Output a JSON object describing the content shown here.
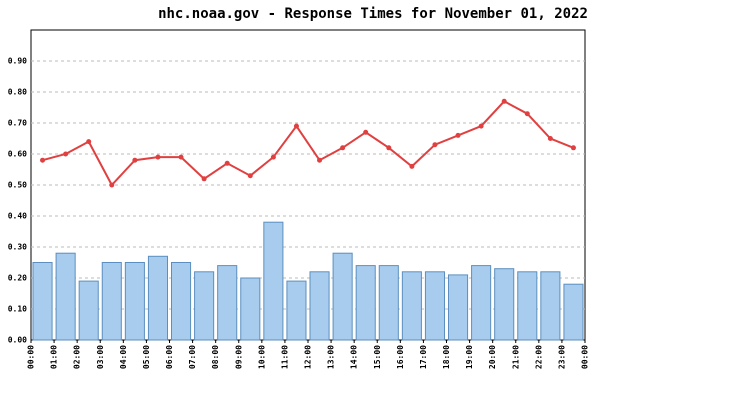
{
  "chart_data": {
    "type": "bar",
    "title": "nhc.noaa.gov - Response Times for November 01, 2022",
    "xticks": [
      "00:00",
      "01:00",
      "02:00",
      "03:00",
      "04:00",
      "05:00",
      "06:00",
      "07:00",
      "08:00",
      "09:00",
      "10:00",
      "11:00",
      "12:00",
      "13:00",
      "14:00",
      "15:00",
      "16:00",
      "17:00",
      "18:00",
      "19:00",
      "20:00",
      "21:00",
      "22:00",
      "23:00",
      "00:00"
    ],
    "series": [
      {
        "type": "bar",
        "color": "#a8ccee",
        "values": [
          0.25,
          0.28,
          0.19,
          0.25,
          0.25,
          0.27,
          0.25,
          0.22,
          0.24,
          0.2,
          0.38,
          0.19,
          0.22,
          0.28,
          0.24,
          0.24,
          0.22,
          0.22,
          0.21,
          0.24,
          0.23,
          0.22,
          0.22,
          0.18
        ]
      },
      {
        "type": "line",
        "color": "#e04040",
        "values": [
          0.58,
          0.6,
          0.64,
          0.5,
          0.58,
          0.59,
          0.59,
          0.52,
          0.57,
          0.53,
          0.59,
          0.69,
          0.58,
          0.62,
          0.67,
          0.62,
          0.56,
          0.63,
          0.66,
          0.69,
          0.77,
          0.73,
          0.65,
          0.62
        ]
      }
    ],
    "ylim": [
      0,
      1.0
    ],
    "yticks": [
      {
        "value": 0,
        "label": "0.00"
      },
      {
        "value": 0.1,
        "label": "0.10"
      },
      {
        "value": 0.2,
        "label": "0.20"
      },
      {
        "value": 0.3,
        "label": "0.30"
      },
      {
        "value": 0.4,
        "label": "0.40"
      },
      {
        "value": 0.5,
        "label": "0.50"
      },
      {
        "value": 0.6,
        "label": "0.60"
      },
      {
        "value": 0.7,
        "label": "0.70"
      },
      {
        "value": 0.8,
        "label": "0.80"
      },
      {
        "value": 0.9,
        "label": "0.90"
      }
    ],
    "grid": true
  }
}
